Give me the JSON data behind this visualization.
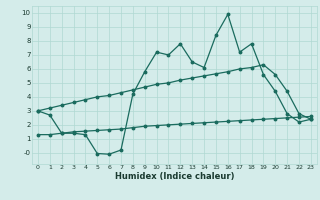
{
  "title": "",
  "xlabel": "Humidex (Indice chaleur)",
  "xlim": [
    -0.5,
    23.5
  ],
  "ylim": [
    -0.8,
    10.5
  ],
  "xticks": [
    0,
    1,
    2,
    3,
    4,
    5,
    6,
    7,
    8,
    9,
    10,
    11,
    12,
    13,
    14,
    15,
    16,
    17,
    18,
    19,
    20,
    21,
    22,
    23
  ],
  "yticks": [
    0,
    1,
    2,
    3,
    4,
    5,
    6,
    7,
    8,
    9,
    10
  ],
  "ytick_labels": [
    "-0",
    "1",
    "2",
    "3",
    "4",
    "5",
    "6",
    "7",
    "8",
    "9",
    "10"
  ],
  "background_color": "#d4ecea",
  "grid_color": "#b0d8d2",
  "line_color": "#1a6b5e",
  "line1_x": [
    0,
    1,
    2,
    3,
    4,
    5,
    6,
    7,
    8,
    9,
    10,
    11,
    12,
    13,
    14,
    15,
    16,
    17,
    18,
    19,
    20,
    21,
    22,
    23
  ],
  "line1_y": [
    3.0,
    2.7,
    1.4,
    1.4,
    1.3,
    -0.05,
    -0.1,
    0.2,
    4.2,
    5.8,
    7.2,
    7.0,
    7.8,
    6.5,
    6.1,
    8.4,
    9.9,
    7.2,
    7.8,
    5.6,
    4.4,
    2.8,
    2.2,
    2.4
  ],
  "line2_x": [
    0,
    1,
    2,
    3,
    4,
    5,
    6,
    7,
    8,
    9,
    10,
    11,
    12,
    13,
    14,
    15,
    16,
    17,
    18,
    19,
    20,
    21,
    22,
    23
  ],
  "line2_y": [
    1.3,
    1.3,
    1.4,
    1.5,
    1.55,
    1.6,
    1.65,
    1.7,
    1.8,
    1.9,
    1.95,
    2.0,
    2.05,
    2.1,
    2.15,
    2.2,
    2.25,
    2.3,
    2.35,
    2.4,
    2.45,
    2.5,
    2.55,
    2.6
  ],
  "line3_x": [
    0,
    1,
    2,
    3,
    4,
    5,
    6,
    7,
    8,
    9,
    10,
    11,
    12,
    13,
    14,
    15,
    16,
    17,
    18,
    19,
    20,
    21,
    22,
    23
  ],
  "line3_y": [
    3.0,
    3.2,
    3.4,
    3.6,
    3.8,
    4.0,
    4.1,
    4.3,
    4.5,
    4.7,
    4.9,
    5.0,
    5.2,
    5.35,
    5.5,
    5.65,
    5.8,
    6.0,
    6.1,
    6.3,
    5.6,
    4.4,
    2.8,
    2.4
  ]
}
